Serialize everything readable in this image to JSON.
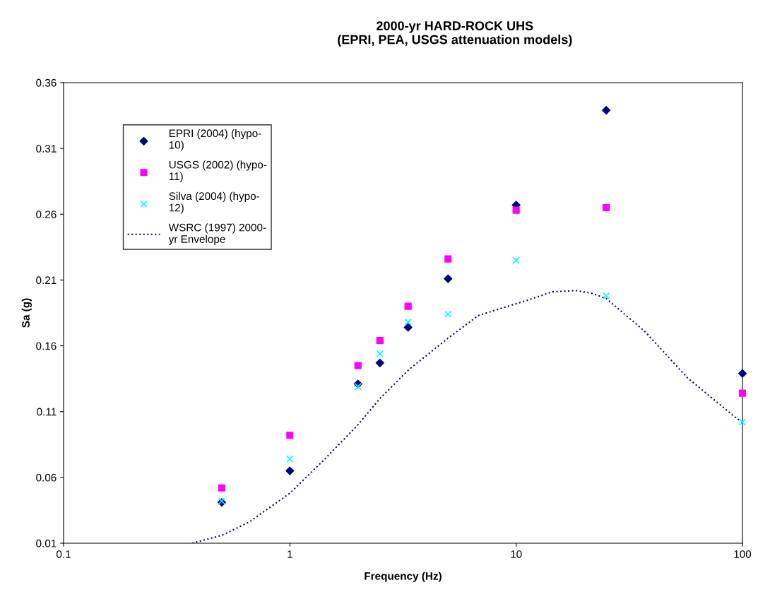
{
  "chart_data": {
    "type": "scatter",
    "title": "2000-yr HARD-ROCK UHS\n(EPRI, PEA, USGS attenuation models)",
    "xlabel": "Frequency (Hz)",
    "ylabel": "Sa (g)",
    "log": "x",
    "xlim": [
      0.1,
      100
    ],
    "xticks": [
      0.1,
      1,
      10,
      100
    ],
    "ylim": [
      0.01,
      0.36
    ],
    "yticks": [
      0.01,
      0.06,
      0.11,
      0.16,
      0.21,
      0.26,
      0.31,
      0.36
    ],
    "grid": false,
    "legend": "top left",
    "series": [
      {
        "name": "EPRI (2004) (hypo-\n10)",
        "marker": "diamond",
        "color": "#000080",
        "x": [
          0.5,
          1,
          2,
          2.5,
          3.33,
          5,
          10,
          25,
          100
        ],
        "values": [
          0.041,
          0.065,
          0.131,
          0.147,
          0.174,
          0.211,
          0.267,
          0.339,
          0.139
        ]
      },
      {
        "name": "USGS (2002) (hypo-\n11)",
        "marker": "square",
        "color": "#ff00ff",
        "x": [
          0.5,
          1,
          2,
          2.5,
          3.33,
          5,
          10,
          25,
          100
        ],
        "values": [
          0.052,
          0.092,
          0.145,
          0.164,
          0.19,
          0.226,
          0.263,
          0.265,
          0.124
        ]
      },
      {
        "name": "Silva (2004) (hypo-\n12)",
        "marker": "cross",
        "color": "#00ffff",
        "x": [
          0.5,
          1,
          2,
          2.5,
          3.33,
          5,
          10,
          25,
          100
        ],
        "values": [
          0.042,
          0.074,
          0.129,
          0.154,
          0.178,
          0.184,
          0.225,
          0.198,
          0.102
        ]
      },
      {
        "name": "WSRC (1997) 2000-\nyr Envelope",
        "type": "line",
        "line_style": "dotted",
        "marker": "none",
        "color": "#000080",
        "x": [
          0.37,
          0.5,
          0.66,
          1,
          1.39,
          2,
          2.5,
          3.36,
          4.93,
          6.8,
          8.4,
          11.4,
          14.4,
          18.4,
          21.5,
          25,
          37,
          56.9,
          94,
          100
        ],
        "values": [
          0.01,
          0.016,
          0.026,
          0.048,
          0.072,
          0.1,
          0.12,
          0.142,
          0.165,
          0.183,
          0.188,
          0.195,
          0.201,
          0.202,
          0.2,
          0.196,
          0.171,
          0.136,
          0.105,
          0.102
        ]
      }
    ]
  }
}
